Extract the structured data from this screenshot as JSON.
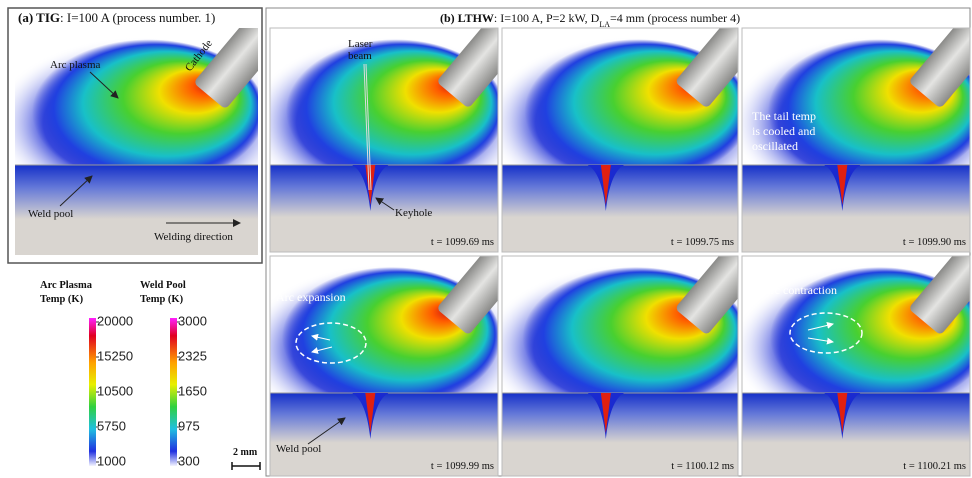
{
  "panel_a": {
    "label": "(a) TIG",
    "caption": ": I=100 A (process number. 1)",
    "annotations": {
      "arc_plasma": "Arc plasma",
      "cathode": "Cathode",
      "weld_pool": "Weld pool",
      "welding_direction": "Welding direction"
    }
  },
  "panel_b": {
    "label": "(b) LTHW",
    "caption_parts": [
      ": I=100 A, P=2 kW, D",
      "LA",
      "=4 mm (process number 4)"
    ],
    "frames": [
      {
        "time": "t = 1099.69 ms",
        "annotations": [
          "Laser",
          "beam",
          "Keyhole"
        ]
      },
      {
        "time": "t = 1099.75 ms",
        "annotations": []
      },
      {
        "time": "t = 1099.90 ms",
        "annotations": [
          "The tail temp",
          "is cooled and",
          "oscillated"
        ]
      },
      {
        "time": "t = 1099.99 ms",
        "annotations": [
          "Arc expansion",
          "Weld pool"
        ]
      },
      {
        "time": "t = 1100.12 ms",
        "annotations": []
      },
      {
        "time": "t = 1100.21 ms",
        "annotations": [
          "Arc contraction"
        ]
      }
    ]
  },
  "legend": {
    "arc_plasma": {
      "title": [
        "Arc Plasma",
        "Temp (K)"
      ],
      "ticks": [
        20000,
        15250,
        10500,
        5750,
        1000
      ]
    },
    "weld_pool": {
      "title": [
        "Weld Pool",
        "Temp (K)"
      ],
      "ticks": [
        3000,
        2325,
        1650,
        975,
        300
      ]
    },
    "scale_bar": "2 mm"
  }
}
